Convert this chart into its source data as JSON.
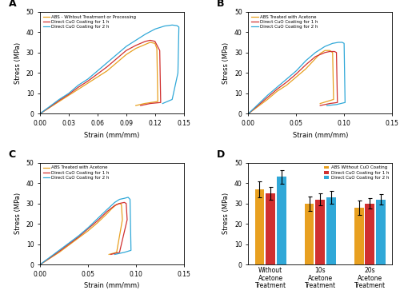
{
  "panel_A": {
    "title": "A",
    "xlabel": "Strain (mm/mm)",
    "ylabel": "Stress (MPa)",
    "xlim": [
      0,
      0.15
    ],
    "ylim": [
      0,
      50
    ],
    "xticks": [
      0,
      0.03,
      0.06,
      0.09,
      0.12,
      0.15
    ],
    "yticks": [
      0,
      10,
      20,
      30,
      40,
      50
    ],
    "curves": [
      {
        "label": "ABS - Wihtout Treatment or Processing",
        "color": "#E8A020",
        "x": [
          0,
          0.01,
          0.02,
          0.03,
          0.04,
          0.05,
          0.06,
          0.07,
          0.08,
          0.09,
          0.1,
          0.11,
          0.115,
          0.12,
          0.122,
          0.123,
          0.109,
          0.1
        ],
        "y": [
          0,
          3,
          6,
          9,
          12,
          15,
          18,
          21,
          25,
          29,
          32,
          34,
          35,
          34.5,
          32,
          6,
          5,
          4
        ]
      },
      {
        "label": "Direct CuO Coating for 1 h",
        "color": "#D03030",
        "x": [
          0,
          0.01,
          0.02,
          0.03,
          0.04,
          0.05,
          0.06,
          0.07,
          0.08,
          0.09,
          0.1,
          0.11,
          0.115,
          0.12,
          0.125,
          0.126,
          0.115,
          0.105
        ],
        "y": [
          0,
          3.2,
          6.5,
          9.5,
          13,
          16,
          19.5,
          23,
          27,
          31,
          33.5,
          35.5,
          36,
          35.5,
          31,
          5.5,
          5,
          4
        ]
      },
      {
        "label": "Direct CuO Coating for 2 h",
        "color": "#30A8D8",
        "x": [
          0,
          0.01,
          0.02,
          0.03,
          0.04,
          0.05,
          0.06,
          0.07,
          0.08,
          0.09,
          0.1,
          0.11,
          0.12,
          0.13,
          0.138,
          0.143,
          0.145,
          0.144,
          0.138,
          0.128
        ],
        "y": [
          0,
          3.5,
          7,
          10,
          14,
          17,
          21,
          25,
          29,
          33,
          36,
          39,
          41.5,
          43,
          43.5,
          43.2,
          42.5,
          20,
          7,
          5
        ]
      }
    ],
    "legend_loc": "upper left"
  },
  "panel_B": {
    "title": "B",
    "xlabel": "Strain (mm/mm)",
    "ylabel": "Stress (MPa)",
    "xlim": [
      0,
      0.15
    ],
    "ylim": [
      0,
      50
    ],
    "xticks": [
      0,
      0.05,
      0.1,
      0.15
    ],
    "yticks": [
      0,
      10,
      20,
      30,
      40,
      50
    ],
    "curves": [
      {
        "label": "ABS Treated with Acetone",
        "color": "#E8A020",
        "x": [
          0,
          0.01,
          0.02,
          0.03,
          0.04,
          0.05,
          0.06,
          0.07,
          0.075,
          0.08,
          0.085,
          0.088,
          0.089,
          0.082,
          0.075
        ],
        "y": [
          0,
          3.5,
          7,
          11,
          14,
          18,
          22,
          27,
          29.5,
          31,
          31,
          30,
          7,
          6,
          5
        ]
      },
      {
        "label": "Direct CuO Coating for 1 h",
        "color": "#D03030",
        "x": [
          0,
          0.01,
          0.02,
          0.03,
          0.04,
          0.05,
          0.06,
          0.07,
          0.08,
          0.085,
          0.09,
          0.092,
          0.093,
          0.085,
          0.075
        ],
        "y": [
          0,
          4,
          8,
          12,
          15.5,
          19.5,
          24,
          28,
          30,
          30.5,
          30.5,
          30,
          5.5,
          5,
          4
        ]
      },
      {
        "label": "Direct CuO Coating for 2 h",
        "color": "#30A8D8",
        "x": [
          0,
          0.01,
          0.02,
          0.03,
          0.04,
          0.05,
          0.06,
          0.07,
          0.08,
          0.088,
          0.094,
          0.098,
          0.1,
          0.101,
          0.092,
          0.082
        ],
        "y": [
          0,
          4.5,
          9,
          13,
          17,
          21,
          26,
          30,
          33,
          34.5,
          35,
          35,
          34.5,
          5.5,
          4.5,
          4
        ]
      }
    ],
    "legend_loc": "upper left"
  },
  "panel_C": {
    "title": "C",
    "xlabel": "Strain (mm/mm)",
    "ylabel": "Stress (MPa)",
    "xlim": [
      0,
      0.15
    ],
    "ylim": [
      0,
      50
    ],
    "xticks": [
      0,
      0.05,
      0.1,
      0.15
    ],
    "yticks": [
      0,
      10,
      20,
      30,
      40,
      50
    ],
    "curves": [
      {
        "label": "ABS Treated with Acetone",
        "color": "#E8A020",
        "x": [
          0,
          0.01,
          0.02,
          0.03,
          0.04,
          0.05,
          0.06,
          0.07,
          0.075,
          0.08,
          0.083,
          0.085,
          0.086,
          0.08,
          0.072
        ],
        "y": [
          0,
          3,
          6,
          9.5,
          13,
          16.5,
          20.5,
          25,
          27.5,
          29.5,
          30,
          29.5,
          22,
          6,
          5
        ]
      },
      {
        "label": "Direct CuO Coating for 1 h",
        "color": "#D03030",
        "x": [
          0,
          0.01,
          0.02,
          0.03,
          0.04,
          0.05,
          0.06,
          0.07,
          0.078,
          0.083,
          0.088,
          0.09,
          0.091,
          0.083,
          0.074
        ],
        "y": [
          0,
          3.2,
          6.5,
          10,
          13.5,
          17.5,
          21.5,
          26,
          29,
          30,
          30.5,
          30,
          22,
          6,
          5
        ]
      },
      {
        "label": "Direct CuO Coating for 2 h",
        "color": "#30A8D8",
        "x": [
          0,
          0.01,
          0.02,
          0.03,
          0.04,
          0.05,
          0.06,
          0.07,
          0.078,
          0.083,
          0.088,
          0.092,
          0.094,
          0.095,
          0.088,
          0.078
        ],
        "y": [
          0,
          3.5,
          7,
          10.5,
          14,
          18,
          22.5,
          27,
          30.5,
          32,
          32.5,
          33,
          32,
          7,
          6,
          5
        ]
      }
    ],
    "legend_loc": "upper left"
  },
  "panel_D": {
    "title": "D",
    "ylabel": "Stress (MPa)",
    "ylim": [
      0,
      50
    ],
    "yticks": [
      0,
      10,
      20,
      30,
      40,
      50
    ],
    "groups": [
      "Without\nAcetone\nTreatment",
      "10s\nAcetone\nTreatment",
      "20s\nAcetone\nTreatment"
    ],
    "bar_width": 0.22,
    "series": [
      {
        "label": "ABS Without CuO Coating",
        "color": "#E8A020",
        "values": [
          37,
          30,
          28
        ],
        "errors": [
          4.0,
          3.5,
          3.5
        ]
      },
      {
        "label": "Direct CuO Coating for 1 h",
        "color": "#D03030",
        "values": [
          35,
          32,
          30
        ],
        "errors": [
          3.0,
          3.0,
          2.5
        ]
      },
      {
        "label": "Direct CuO Coating for 2 h",
        "color": "#30A8D8",
        "values": [
          43,
          33,
          32
        ],
        "errors": [
          3.5,
          3.0,
          2.5
        ]
      }
    ]
  }
}
